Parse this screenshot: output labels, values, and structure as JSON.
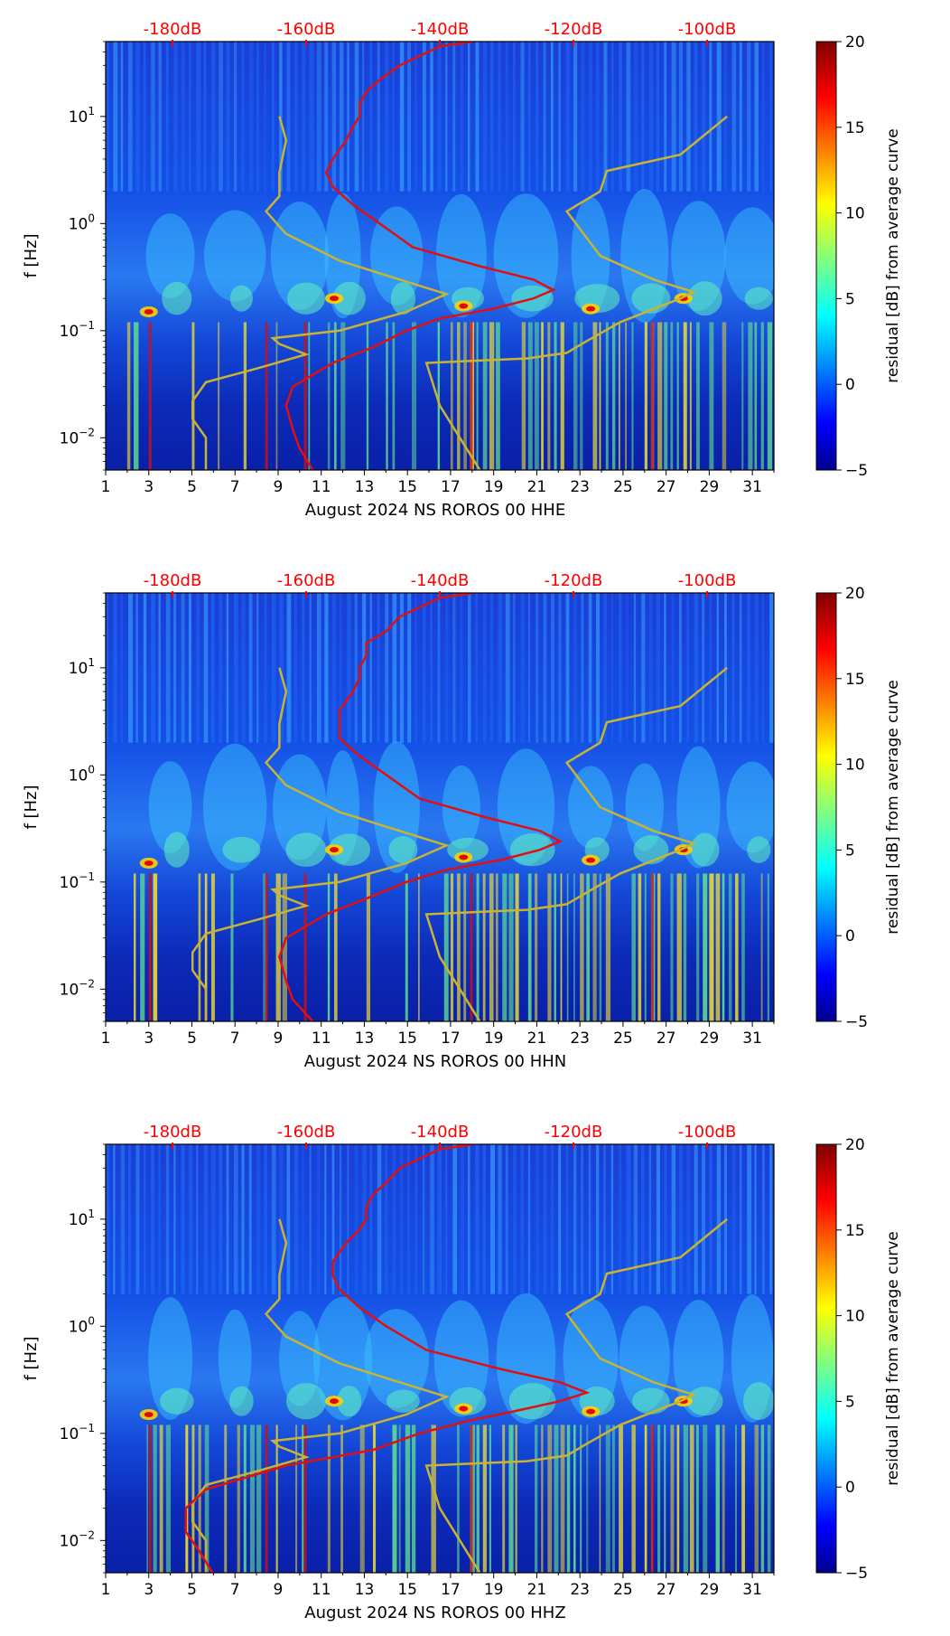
{
  "chart_data": [
    {
      "type": "heatmap",
      "title": "",
      "xlabel": "August 2024 NS ROROS 00 HHE",
      "ylabel": "f [Hz]",
      "x_ticks": [
        "1",
        "3",
        "5",
        "7",
        "9",
        "11",
        "13",
        "15",
        "17",
        "19",
        "21",
        "23",
        "25",
        "27",
        "29",
        "31"
      ],
      "xlim": [
        1,
        32
      ],
      "ylim": [
        0.005,
        50
      ],
      "y_scale": "log",
      "y_ticks": [
        {
          "exp": "-2",
          "value": 0.01
        },
        {
          "exp": "-1",
          "value": 0.1
        },
        {
          "exp": "0",
          "value": 1
        },
        {
          "exp": "1",
          "value": 10
        }
      ],
      "top_axis_labels": [
        "-180dB",
        "-160dB",
        "-140dB",
        "-120dB",
        "-100dB"
      ],
      "top_axis_values_db": [
        -180,
        -160,
        -140,
        -120,
        -100
      ],
      "colorbar": {
        "label": "residual [dB] from average curve",
        "min": -5,
        "max": 20,
        "ticks": [
          "20",
          "15",
          "10",
          "5",
          "0",
          "−5"
        ],
        "tick_values": [
          20,
          15,
          10,
          5,
          0,
          -5
        ]
      },
      "red_curve_db_vs_freq": [
        [
          0.005,
          -159
        ],
        [
          0.008,
          -161
        ],
        [
          0.012,
          -162
        ],
        [
          0.02,
          -163
        ],
        [
          0.03,
          -162
        ],
        [
          0.05,
          -156
        ],
        [
          0.07,
          -150
        ],
        [
          0.1,
          -145
        ],
        [
          0.13,
          -140
        ],
        [
          0.16,
          -132
        ],
        [
          0.2,
          -126
        ],
        [
          0.24,
          -123
        ],
        [
          0.3,
          -126
        ],
        [
          0.4,
          -134
        ],
        [
          0.6,
          -144
        ],
        [
          1.0,
          -149
        ],
        [
          1.5,
          -153
        ],
        [
          2.2,
          -156
        ],
        [
          3,
          -157
        ],
        [
          4,
          -156
        ],
        [
          6,
          -154
        ],
        [
          8,
          -153
        ],
        [
          10,
          -152
        ],
        [
          13,
          -152
        ],
        [
          17,
          -151
        ],
        [
          22,
          -149
        ],
        [
          30,
          -146
        ],
        [
          45,
          -140
        ],
        [
          50,
          -135
        ]
      ],
      "yellow_curve_db_vs_freq": [
        [
          0.005,
          -175
        ],
        [
          0.01,
          -175
        ],
        [
          0.015,
          -177
        ],
        [
          0.022,
          -177
        ],
        [
          0.033,
          -175
        ],
        [
          0.045,
          -167
        ],
        [
          0.06,
          -160
        ],
        [
          0.075,
          -164
        ],
        [
          0.085,
          -165
        ],
        [
          0.1,
          -155
        ],
        [
          0.15,
          -145
        ],
        [
          0.22,
          -139
        ],
        [
          0.3,
          -146
        ],
        [
          0.45,
          -155
        ],
        [
          0.8,
          -163
        ],
        [
          1.3,
          -166
        ],
        [
          1.8,
          -164
        ],
        [
          3,
          -164
        ],
        [
          6,
          -163
        ],
        [
          10,
          -164
        ]
      ],
      "yellow_curve_upper_db_vs_freq": [
        [
          0.005,
          -134
        ],
        [
          0.01,
          -137
        ],
        [
          0.02,
          -140
        ],
        [
          0.05,
          -142
        ],
        [
          0.055,
          -127
        ],
        [
          0.062,
          -121
        ],
        [
          0.08,
          -118
        ],
        [
          0.12,
          -113
        ],
        [
          0.2,
          -104
        ],
        [
          0.23,
          -102
        ],
        [
          0.3,
          -108
        ],
        [
          0.5,
          -116
        ],
        [
          1.3,
          -121
        ],
        [
          2,
          -116
        ],
        [
          3.1,
          -115
        ],
        [
          4.4,
          -104
        ],
        [
          10,
          -97
        ]
      ]
    },
    {
      "type": "heatmap",
      "title": "",
      "xlabel": "August 2024 NS ROROS 00 HHN",
      "ylabel": "f [Hz]",
      "x_ticks": [
        "1",
        "3",
        "5",
        "7",
        "9",
        "11",
        "13",
        "15",
        "17",
        "19",
        "21",
        "23",
        "25",
        "27",
        "29",
        "31"
      ],
      "xlim": [
        1,
        32
      ],
      "ylim": [
        0.005,
        50
      ],
      "y_scale": "log",
      "y_ticks": [
        {
          "exp": "-2",
          "value": 0.01
        },
        {
          "exp": "-1",
          "value": 0.1
        },
        {
          "exp": "0",
          "value": 1
        },
        {
          "exp": "1",
          "value": 10
        }
      ],
      "top_axis_labels": [
        "-180dB",
        "-160dB",
        "-140dB",
        "-120dB",
        "-100dB"
      ],
      "top_axis_values_db": [
        -180,
        -160,
        -140,
        -120,
        -100
      ],
      "colorbar": {
        "label": "residual [dB] from average curve",
        "min": -5,
        "max": 20,
        "ticks": [
          "20",
          "15",
          "10",
          "5",
          "0",
          "−5"
        ],
        "tick_values": [
          20,
          15,
          10,
          5,
          0,
          -5
        ]
      },
      "red_curve_db_vs_freq": [
        [
          0.005,
          -159
        ],
        [
          0.008,
          -162
        ],
        [
          0.012,
          -163
        ],
        [
          0.02,
          -164
        ],
        [
          0.03,
          -163
        ],
        [
          0.05,
          -157
        ],
        [
          0.07,
          -151
        ],
        [
          0.1,
          -145
        ],
        [
          0.13,
          -139
        ],
        [
          0.16,
          -131
        ],
        [
          0.2,
          -125
        ],
        [
          0.24,
          -122
        ],
        [
          0.3,
          -125
        ],
        [
          0.4,
          -133
        ],
        [
          0.6,
          -143
        ],
        [
          1.0,
          -148
        ],
        [
          1.5,
          -152
        ],
        [
          2.2,
          -155
        ],
        [
          3,
          -155
        ],
        [
          4,
          -155
        ],
        [
          6,
          -153
        ],
        [
          8,
          -152
        ],
        [
          10,
          -152
        ],
        [
          13,
          -151
        ],
        [
          17,
          -151
        ],
        [
          22,
          -148
        ],
        [
          30,
          -146
        ],
        [
          45,
          -140
        ],
        [
          50,
          -135
        ]
      ],
      "yellow_curve_db_vs_freq": [
        [
          0.005,
          -175
        ],
        [
          0.01,
          -175
        ],
        [
          0.015,
          -177
        ],
        [
          0.022,
          -177
        ],
        [
          0.033,
          -175
        ],
        [
          0.045,
          -167
        ],
        [
          0.06,
          -160
        ],
        [
          0.075,
          -164
        ],
        [
          0.085,
          -165
        ],
        [
          0.1,
          -155
        ],
        [
          0.15,
          -145
        ],
        [
          0.22,
          -139
        ],
        [
          0.3,
          -146
        ],
        [
          0.45,
          -155
        ],
        [
          0.8,
          -163
        ],
        [
          1.3,
          -166
        ],
        [
          1.8,
          -164
        ],
        [
          3,
          -164
        ],
        [
          6,
          -163
        ],
        [
          10,
          -164
        ]
      ],
      "yellow_curve_upper_db_vs_freq": [
        [
          0.005,
          -134
        ],
        [
          0.01,
          -137
        ],
        [
          0.02,
          -140
        ],
        [
          0.05,
          -142
        ],
        [
          0.055,
          -127
        ],
        [
          0.062,
          -121
        ],
        [
          0.08,
          -118
        ],
        [
          0.12,
          -113
        ],
        [
          0.2,
          -104
        ],
        [
          0.23,
          -102
        ],
        [
          0.3,
          -108
        ],
        [
          0.5,
          -116
        ],
        [
          1.3,
          -121
        ],
        [
          2,
          -116
        ],
        [
          3.1,
          -115
        ],
        [
          4.4,
          -104
        ],
        [
          10,
          -97
        ]
      ]
    },
    {
      "type": "heatmap",
      "title": "",
      "xlabel": "August 2024 NS ROROS 00 HHZ",
      "ylabel": "f [Hz]",
      "x_ticks": [
        "1",
        "3",
        "5",
        "7",
        "9",
        "11",
        "13",
        "15",
        "17",
        "19",
        "21",
        "23",
        "25",
        "27",
        "29",
        "31"
      ],
      "xlim": [
        1,
        32
      ],
      "ylim": [
        0.005,
        50
      ],
      "y_scale": "log",
      "y_ticks": [
        {
          "exp": "-2",
          "value": 0.01
        },
        {
          "exp": "-1",
          "value": 0.1
        },
        {
          "exp": "0",
          "value": 1
        },
        {
          "exp": "1",
          "value": 10
        }
      ],
      "top_axis_labels": [
        "-180dB",
        "-160dB",
        "-140dB",
        "-120dB",
        "-100dB"
      ],
      "top_axis_values_db": [
        -180,
        -160,
        -140,
        -120,
        -100
      ],
      "colorbar": {
        "label": "residual [dB] from average curve",
        "min": -5,
        "max": 20,
        "ticks": [
          "20",
          "15",
          "10",
          "5",
          "0",
          "−5"
        ],
        "tick_values": [
          20,
          15,
          10,
          5,
          0,
          -5
        ]
      },
      "red_curve_db_vs_freq": [
        [
          0.005,
          -174
        ],
        [
          0.008,
          -176
        ],
        [
          0.012,
          -178
        ],
        [
          0.02,
          -178
        ],
        [
          0.03,
          -175
        ],
        [
          0.05,
          -163
        ],
        [
          0.07,
          -150
        ],
        [
          0.1,
          -143
        ],
        [
          0.13,
          -136
        ],
        [
          0.16,
          -129
        ],
        [
          0.2,
          -122
        ],
        [
          0.24,
          -118
        ],
        [
          0.3,
          -122
        ],
        [
          0.4,
          -131
        ],
        [
          0.6,
          -142
        ],
        [
          1.0,
          -148
        ],
        [
          1.5,
          -152
        ],
        [
          2.2,
          -155
        ],
        [
          3,
          -156
        ],
        [
          4,
          -156
        ],
        [
          6,
          -154
        ],
        [
          8,
          -152
        ],
        [
          10,
          -151
        ],
        [
          13,
          -151
        ],
        [
          17,
          -150
        ],
        [
          22,
          -148
        ],
        [
          30,
          -146
        ],
        [
          45,
          -140
        ],
        [
          50,
          -135
        ]
      ],
      "yellow_curve_db_vs_freq": [
        [
          0.005,
          -175
        ],
        [
          0.01,
          -175
        ],
        [
          0.015,
          -177
        ],
        [
          0.022,
          -177
        ],
        [
          0.033,
          -175
        ],
        [
          0.045,
          -167
        ],
        [
          0.06,
          -160
        ],
        [
          0.075,
          -164
        ],
        [
          0.085,
          -165
        ],
        [
          0.1,
          -155
        ],
        [
          0.15,
          -145
        ],
        [
          0.22,
          -139
        ],
        [
          0.3,
          -146
        ],
        [
          0.45,
          -155
        ],
        [
          0.8,
          -163
        ],
        [
          1.3,
          -166
        ],
        [
          1.8,
          -164
        ],
        [
          3,
          -164
        ],
        [
          6,
          -163
        ],
        [
          10,
          -164
        ]
      ],
      "yellow_curve_upper_db_vs_freq": [
        [
          0.005,
          -134
        ],
        [
          0.01,
          -137
        ],
        [
          0.02,
          -140
        ],
        [
          0.05,
          -142
        ],
        [
          0.055,
          -127
        ],
        [
          0.062,
          -121
        ],
        [
          0.08,
          -118
        ],
        [
          0.12,
          -113
        ],
        [
          0.2,
          -104
        ],
        [
          0.23,
          -102
        ],
        [
          0.3,
          -108
        ],
        [
          0.5,
          -116
        ],
        [
          1.3,
          -121
        ],
        [
          2,
          -116
        ],
        [
          3.1,
          -115
        ],
        [
          4.4,
          -104
        ],
        [
          10,
          -97
        ]
      ]
    }
  ],
  "colors": {
    "top_axis_text": "#ff0000",
    "red_curve": "#e01010",
    "yellow_curve": "#c8b432",
    "background": "#ffffff"
  }
}
